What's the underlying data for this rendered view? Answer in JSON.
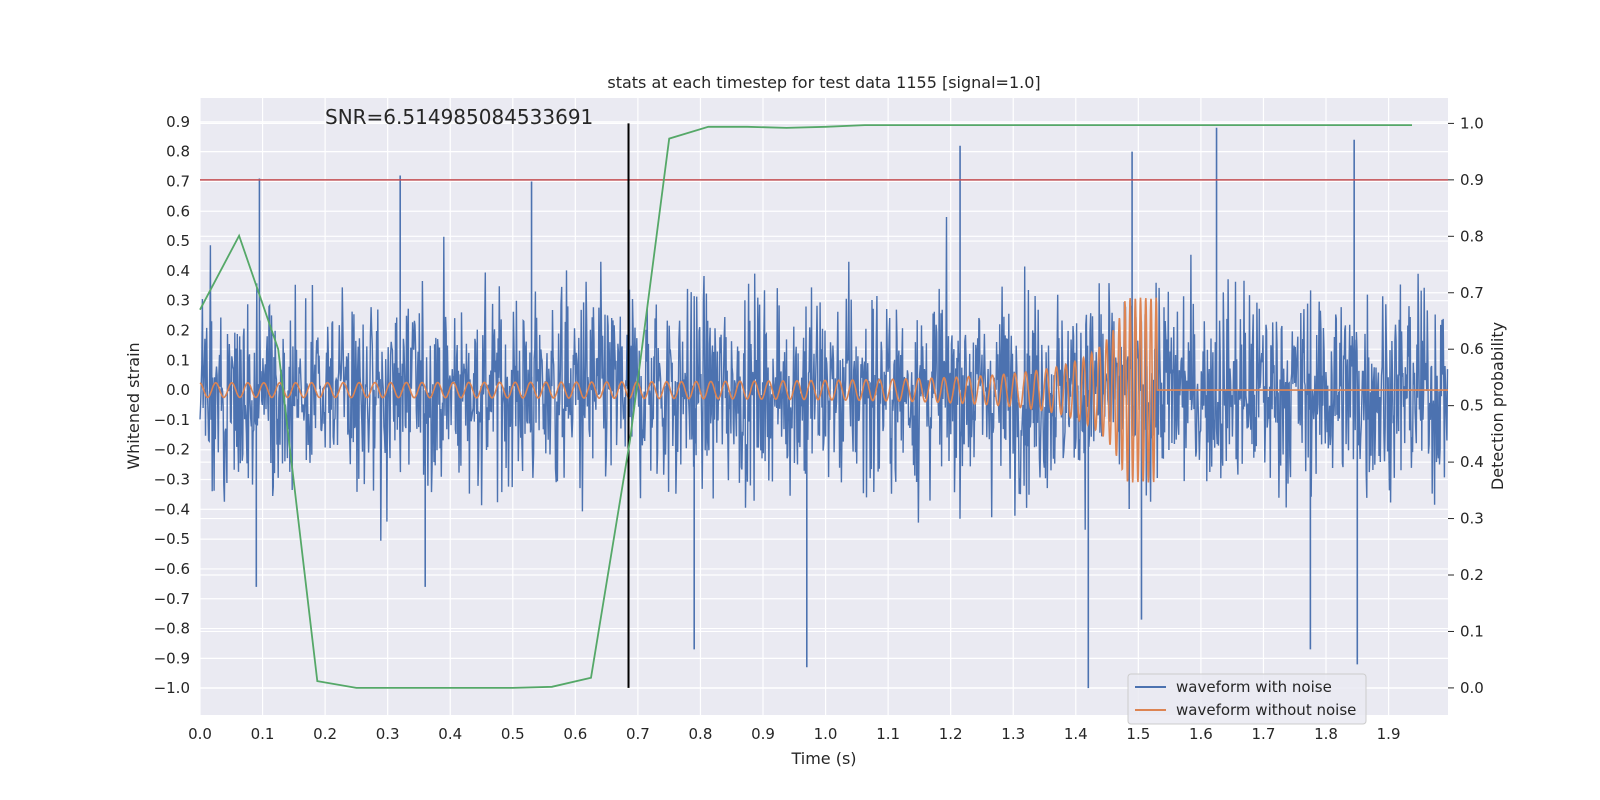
{
  "chart_data": {
    "type": "line",
    "title": "stats at each timestep for test data 1155 [signal=1.0]",
    "xlabel": "Time (s)",
    "ylabel": "Whitened strain",
    "y2label": "Detection probability",
    "annotation": "SNR=6.514985084533691",
    "xlim": [
      0.0,
      1.995
    ],
    "ylim": [
      -1.09,
      0.98
    ],
    "y2lim": [
      -0.048,
      1.045
    ],
    "x_ticks": [
      "0.0",
      "0.1",
      "0.2",
      "0.3",
      "0.4",
      "0.5",
      "0.6",
      "0.7",
      "0.8",
      "0.9",
      "1.0",
      "1.1",
      "1.2",
      "1.3",
      "1.4",
      "1.5",
      "1.6",
      "1.7",
      "1.8",
      "1.9"
    ],
    "y_ticks": [
      "0.9",
      "0.8",
      "0.7",
      "0.6",
      "0.5",
      "0.4",
      "0.3",
      "0.2",
      "0.1",
      "0.0",
      "−0.1",
      "−0.2",
      "−0.3",
      "−0.4",
      "−0.5",
      "−0.6",
      "−0.7",
      "−0.8",
      "−0.9",
      "−1.0"
    ],
    "y2_ticks": [
      "1.0",
      "0.9",
      "0.8",
      "0.7",
      "0.6",
      "0.5",
      "0.4",
      "0.3",
      "0.2",
      "0.1",
      "0.0"
    ],
    "grid": true,
    "legend_position": "lower right",
    "threshold": {
      "y2": 0.9,
      "color": "#c44e52"
    },
    "vline": {
      "x": 0.685,
      "color": "#000000"
    },
    "series": [
      {
        "name": "waveform with noise",
        "color": "#4c72b0",
        "axis": "left",
        "sample_rate": 2048,
        "seed": 1155,
        "amplitude": 0.3,
        "spikes": [
          {
            "x": 0.095,
            "y": 0.71
          },
          {
            "x": 0.32,
            "y": 0.72
          },
          {
            "x": 0.53,
            "y": 0.7
          },
          {
            "x": 1.215,
            "y": 0.82
          },
          {
            "x": 1.49,
            "y": 0.8
          },
          {
            "x": 1.625,
            "y": 0.88
          },
          {
            "x": 1.845,
            "y": 0.84
          },
          {
            "x": 1.42,
            "y": -1.0
          },
          {
            "x": 0.97,
            "y": -0.93
          },
          {
            "x": 1.85,
            "y": -0.92
          },
          {
            "x": 1.775,
            "y": -0.87
          },
          {
            "x": 0.79,
            "y": -0.87
          },
          {
            "x": 0.09,
            "y": -0.66
          },
          {
            "x": 0.36,
            "y": -0.66
          },
          {
            "x": 1.505,
            "y": -0.77
          }
        ]
      },
      {
        "name": "waveform without noise",
        "color": "#dd8452",
        "axis": "left",
        "merger_time": 1.53,
        "amplitude_start": 0.022,
        "amplitude_peak": 0.31,
        "frequency_start": 35,
        "frequency_peak": 120
      },
      {
        "name": "",
        "color": "#55a868",
        "axis": "right",
        "x": [
          0.0,
          0.0625,
          0.125,
          0.1875,
          0.25,
          0.3125,
          0.375,
          0.4375,
          0.5,
          0.5625,
          0.625,
          0.6875,
          0.75,
          0.8125,
          0.875,
          0.9375,
          1.0,
          1.0625,
          1.125,
          1.1875,
          1.25,
          1.3125,
          1.375,
          1.4375,
          1.5,
          1.5625,
          1.625,
          1.6875,
          1.75,
          1.8125,
          1.875,
          1.9375
        ],
        "values": [
          0.67,
          0.801,
          0.6,
          0.012,
          0.0,
          0.0,
          0.0,
          0.0,
          0.0,
          0.002,
          0.018,
          0.44,
          0.973,
          0.994,
          0.994,
          0.992,
          0.994,
          0.997,
          0.997,
          0.997,
          0.997,
          0.997,
          0.997,
          0.997,
          0.997,
          0.997,
          0.997,
          0.997,
          0.997,
          0.997,
          0.997,
          0.997
        ]
      }
    ]
  }
}
